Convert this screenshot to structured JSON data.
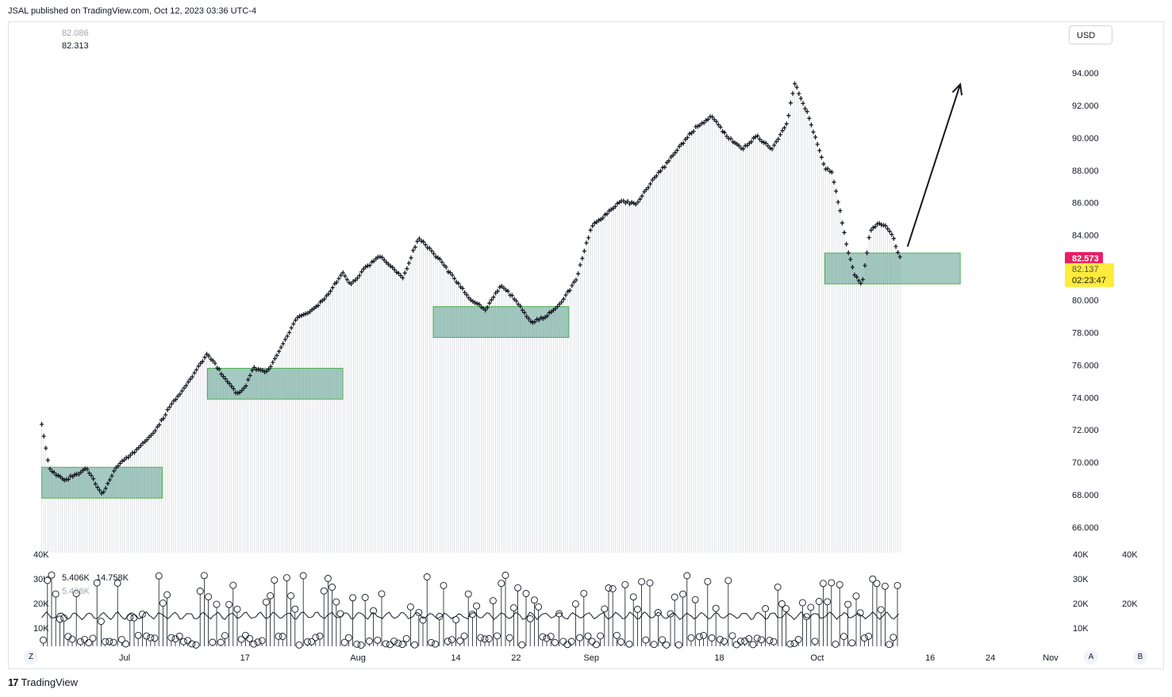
{
  "header": {
    "published_by": "JSAL published on TradingView.com, Oct 12, 2023 03:36 UTC-4"
  },
  "currency_button": "USD",
  "legend": {
    "line1": "82.086",
    "line2": "82.313",
    "vol_line1": "5.406K",
    "vol_line1b": "14.758K",
    "vol_line2": "5.406K"
  },
  "price_tags": {
    "last_price": "82.573",
    "prev_price": "82.137",
    "countdown": "02:23:47"
  },
  "bottom_buttons": {
    "left": "Z",
    "right_a": "A",
    "right_b": "B"
  },
  "footer": {
    "brand": "TradingView"
  },
  "colors": {
    "last_tag": "#e91e63",
    "countdown_tag": "#ffeb3b",
    "zone_fill": "#5b9f8e",
    "zone_border": "#4caf50",
    "price_marks": "#131722"
  },
  "chart_data": {
    "type": "line",
    "title": "",
    "xlabel": "",
    "ylabel": "",
    "y_ticks": [
      "94.000",
      "92.000",
      "90.000",
      "88.000",
      "86.000",
      "84.000",
      "82.000",
      "80.000",
      "78.000",
      "76.000",
      "74.000",
      "72.000",
      "70.000",
      "68.000",
      "66.000"
    ],
    "ylim": [
      64.0,
      96.5
    ],
    "x_ticks": [
      "Jul",
      "17",
      "Aug",
      "14",
      "22",
      "Sep",
      "18",
      "Oct",
      "16",
      "24",
      "Nov"
    ],
    "x_tick_dates": [
      "2023-07-01",
      "2023-07-17",
      "2023-08-01",
      "2023-08-14",
      "2023-08-22",
      "2023-09-01",
      "2023-09-18",
      "2023-10-01",
      "2023-10-16",
      "2023-10-24",
      "2023-11-01"
    ],
    "series": [
      {
        "x": [
          "2023-06-20",
          "2023-06-21",
          "2023-06-23",
          "2023-06-26",
          "2023-06-28",
          "2023-06-30",
          "2023-07-03",
          "2023-07-05",
          "2023-07-07",
          "2023-07-10",
          "2023-07-12",
          "2023-07-14",
          "2023-07-16",
          "2023-07-17",
          "2023-07-18",
          "2023-07-20",
          "2023-07-22",
          "2023-07-24",
          "2023-07-26",
          "2023-07-28",
          "2023-07-30",
          "2023-07-31",
          "2023-08-02",
          "2023-08-04",
          "2023-08-07",
          "2023-08-09",
          "2023-08-10",
          "2023-08-12",
          "2023-08-14",
          "2023-08-16",
          "2023-08-18",
          "2023-08-20",
          "2023-08-22",
          "2023-08-24",
          "2023-08-26",
          "2023-08-28",
          "2023-08-30",
          "2023-09-01",
          "2023-09-03",
          "2023-09-05",
          "2023-09-07",
          "2023-09-09",
          "2023-09-11",
          "2023-09-13",
          "2023-09-15",
          "2023-09-17",
          "2023-09-19",
          "2023-09-21",
          "2023-09-23",
          "2023-09-25",
          "2023-09-27",
          "2023-09-28",
          "2023-09-30",
          "2023-10-01",
          "2023-10-02",
          "2023-10-03",
          "2023-10-04",
          "2023-10-05",
          "2023-10-06",
          "2023-10-07",
          "2023-10-08",
          "2023-10-09",
          "2023-10-10",
          "2023-10-11",
          "2023-10-12"
        ],
        "y": [
          72.3,
          69.6,
          68.9,
          69.6,
          68.0,
          69.8,
          70.9,
          71.9,
          73.4,
          75.3,
          76.7,
          75.4,
          74.2,
          74.6,
          75.8,
          75.6,
          77.2,
          79.0,
          79.4,
          80.3,
          81.7,
          80.9,
          82.0,
          82.7,
          81.4,
          83.8,
          83.4,
          82.4,
          81.2,
          80.0,
          79.4,
          80.9,
          80.0,
          78.6,
          79.0,
          79.8,
          81.3,
          84.5,
          85.3,
          86.1,
          85.9,
          87.3,
          88.4,
          89.6,
          90.7,
          91.3,
          90.1,
          89.3,
          90.1,
          89.3,
          90.9,
          93.4,
          91.2,
          89.6,
          88.2,
          87.8,
          85.6,
          83.2,
          81.5,
          81.0,
          84.2,
          84.7,
          84.6,
          84.0,
          82.6
        ]
      }
    ],
    "zones": [
      {
        "x0": "2023-06-20",
        "x1": "2023-07-06",
        "y0": 67.8,
        "y1": 69.7
      },
      {
        "x0": "2023-07-12",
        "x1": "2023-07-30",
        "y0": 73.9,
        "y1": 75.8
      },
      {
        "x0": "2023-08-11",
        "x1": "2023-08-29",
        "y0": 77.7,
        "y1": 79.6
      },
      {
        "x0": "2023-10-02",
        "x1": "2023-10-20",
        "y0": 81.0,
        "y1": 82.9
      }
    ],
    "arrow": {
      "x0": "2023-10-13",
      "y0": 83.3,
      "x1": "2023-10-20",
      "y1": 93.3
    },
    "volume": {
      "y_ticks": [
        "40K",
        "30K",
        "20K",
        "10K"
      ],
      "right_ticks": [
        "40K",
        "20K"
      ],
      "ma_level_k": 15
    }
  }
}
